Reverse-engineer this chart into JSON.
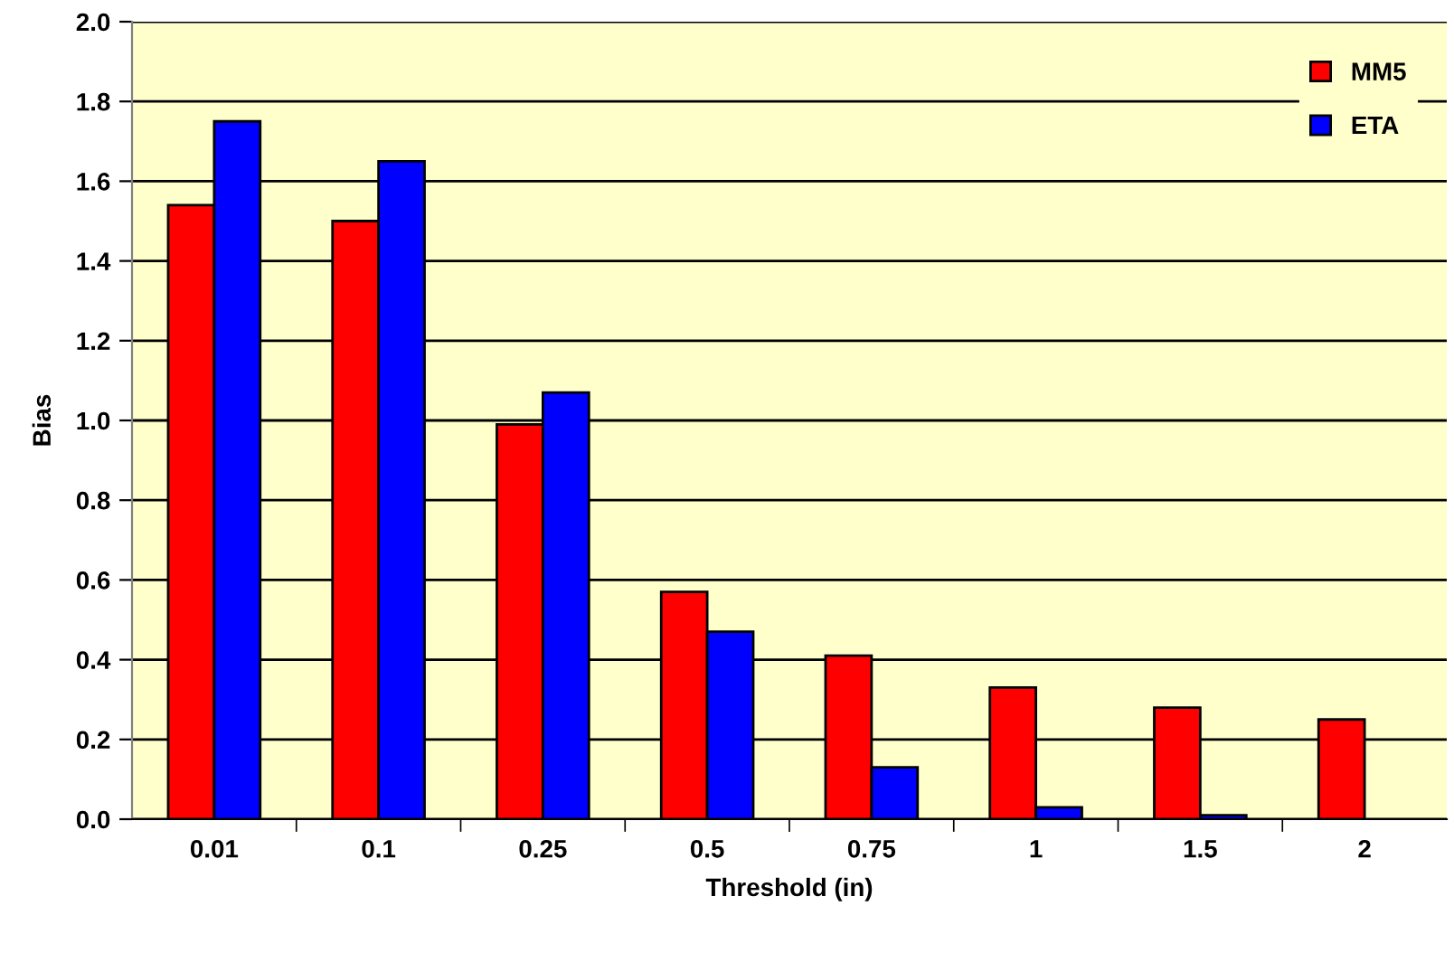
{
  "chart_data": {
    "type": "bar",
    "xlabel": "Threshold (in)",
    "ylabel": "Bias",
    "categories": [
      "0.01",
      "0.1",
      "0.25",
      "0.5",
      "0.75",
      "1",
      "1.5",
      "2"
    ],
    "series": [
      {
        "name": "MM5",
        "color": "#ff0000",
        "values": [
          1.54,
          1.5,
          0.99,
          0.57,
          0.41,
          0.33,
          0.28,
          0.25
        ]
      },
      {
        "name": "ETA",
        "color": "#0000ff",
        "values": [
          1.75,
          1.65,
          1.07,
          0.47,
          0.13,
          0.03,
          0.01,
          null
        ]
      }
    ],
    "ylim": [
      0,
      2.0
    ],
    "yticks": [
      {
        "value": 0,
        "label": "0.0"
      },
      {
        "value": 0.2,
        "label": "0.2"
      },
      {
        "value": 0.4,
        "label": "0.4"
      },
      {
        "value": 0.6,
        "label": "0.6"
      },
      {
        "value": 0.8,
        "label": "0.8"
      },
      {
        "value": 1.0,
        "label": "1.0"
      },
      {
        "value": 1.2,
        "label": "1.2"
      },
      {
        "value": 1.4,
        "label": "1.4"
      },
      {
        "value": 1.6,
        "label": "1.6"
      },
      {
        "value": 1.8,
        "label": "1.8"
      },
      {
        "value": 2.0,
        "label": "2.0"
      }
    ],
    "grid": "y",
    "legend": "top right"
  }
}
